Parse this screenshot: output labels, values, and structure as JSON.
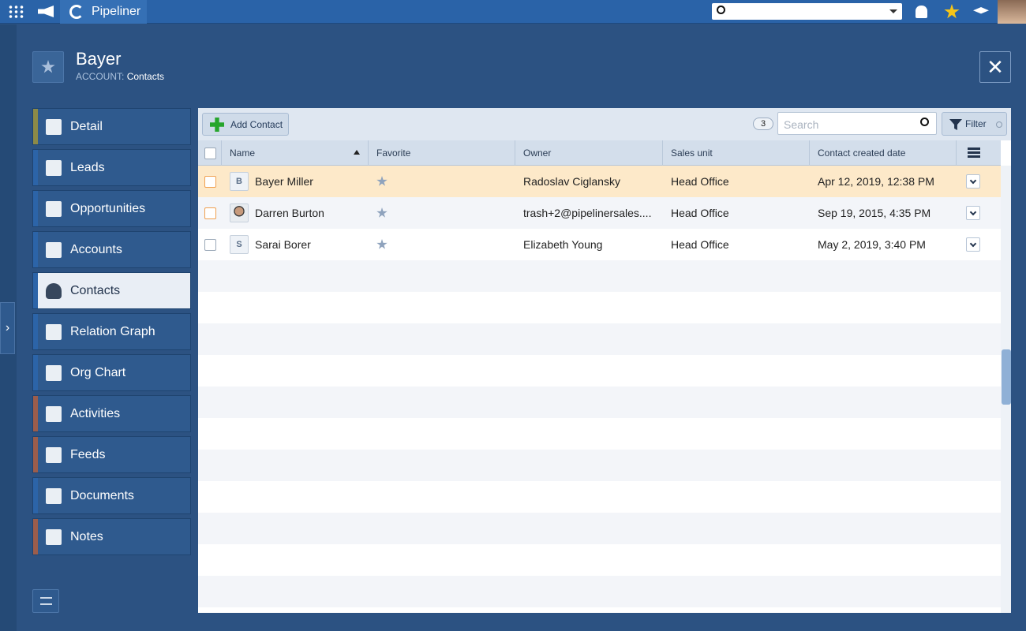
{
  "topbar": {
    "brand": "Pipeliner"
  },
  "header": {
    "title": "Bayer",
    "subtitle_label": "ACCOUNT:",
    "subtitle_value": "Contacts"
  },
  "nav": [
    "Detail",
    "Leads",
    "Opportunities",
    "Accounts",
    "Contacts",
    "Relation Graph",
    "Org Chart",
    "Activities",
    "Feeds",
    "Documents",
    "Notes"
  ],
  "toolbar": {
    "add_button": "Add Contact",
    "count": 3,
    "search_placeholder": "Search",
    "filter_button": "Filter"
  },
  "table": {
    "columns": [
      "Name",
      "Favorite",
      "Owner",
      "Sales unit",
      "Contact created date"
    ],
    "rows": [
      {
        "initial": "B",
        "name": "Bayer Miller",
        "owner": "Radoslav Ciglansky",
        "sales_unit": "Head Office",
        "created": "Apr 12, 2019, 12:38 PM"
      },
      {
        "name": "Darren Burton",
        "owner": "trash+2@pipelinersales....",
        "sales_unit": "Head Office",
        "created": "Sep 19, 2015, 4:35 PM"
      },
      {
        "initial": "S",
        "name": "Sarai Borer",
        "owner": "Elizabeth Young",
        "sales_unit": "Head Office",
        "created": "May 2, 2019, 3:40 PM"
      }
    ]
  }
}
